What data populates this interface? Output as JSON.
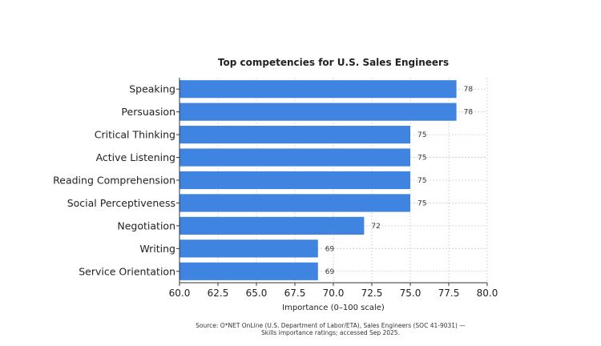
{
  "chart_data": {
    "type": "bar",
    "orientation": "horizontal",
    "title": "Top competencies for U.S. Sales Engineers",
    "xlabel": "Importance (0–100 scale)",
    "ylabel": "",
    "categories": [
      "Speaking",
      "Persuasion",
      "Critical Thinking",
      "Active Listening",
      "Reading Comprehension",
      "Social Perceptiveness",
      "Negotiation",
      "Writing",
      "Service Orientation"
    ],
    "values": [
      78,
      78,
      75,
      75,
      75,
      75,
      72,
      69,
      69
    ],
    "value_labels": [
      "78",
      "78",
      "75",
      "75",
      "75",
      "75",
      "72",
      "69",
      "69"
    ],
    "xlim": [
      60,
      80
    ],
    "xticks": [
      60,
      62.5,
      65,
      67.5,
      70,
      72.5,
      75,
      77.5,
      80
    ],
    "xtick_labels": [
      "60.0",
      "62.5",
      "65.0",
      "67.5",
      "70.0",
      "72.5",
      "75.0",
      "77.5",
      "80.0"
    ],
    "grid": true,
    "bar_color": "#3f84e0",
    "grid_color": "#cccccc"
  },
  "source": {
    "line1": "Source: O*NET OnLine (U.S. Department of Labor/ETA), Sales Engineers (SOC 41-9031) —",
    "line2": "Skills importance ratings; accessed Sep 2025."
  }
}
